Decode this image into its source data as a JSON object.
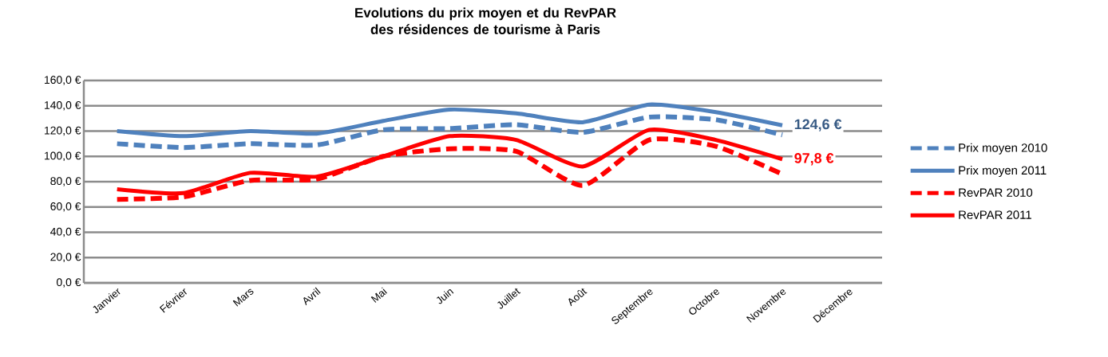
{
  "chart_data": {
    "type": "line",
    "title": "Evolutions du prix moyen et du RevPAR des résidences de tourisme à Paris",
    "categories": [
      "Janvier",
      "Février",
      "Mars",
      "Avril",
      "Mai",
      "Juin",
      "Juillet",
      "Août",
      "Septembre",
      "Octobre",
      "Novembre",
      "Décembre"
    ],
    "series": [
      {
        "name": "Prix moyen 2010",
        "color": "#4f81bd",
        "line_style": "dashed",
        "values": [
          110,
          107,
          110,
          109,
          121,
          122,
          125,
          119,
          131,
          129,
          117,
          null
        ]
      },
      {
        "name": "Prix moyen 2011",
        "color": "#4f81bd",
        "line_style": "solid",
        "values": [
          120,
          116,
          120,
          118,
          128,
          137,
          134,
          127,
          141,
          135,
          124.6,
          null
        ]
      },
      {
        "name": "RevPAR 2010",
        "color": "#ff0000",
        "line_style": "dashed",
        "values": [
          66,
          68,
          81,
          82,
          100,
          106,
          104,
          77,
          113,
          108,
          86,
          null
        ]
      },
      {
        "name": "RevPAR 2011",
        "color": "#ff0000",
        "line_style": "solid",
        "values": [
          74,
          71,
          87,
          84,
          100,
          116,
          113,
          92,
          121,
          113,
          97.8,
          null
        ]
      }
    ],
    "ylim": [
      0,
      160
    ],
    "yticks": [
      {
        "value": 0,
        "label": "0,0 €"
      },
      {
        "value": 20,
        "label": "20,0 €"
      },
      {
        "value": 40,
        "label": "40,0 €"
      },
      {
        "value": 60,
        "label": "60,0 €"
      },
      {
        "value": 80,
        "label": "80,0 €"
      },
      {
        "value": 100,
        "label": "100,0 €"
      },
      {
        "value": 120,
        "label": "120,0 €"
      },
      {
        "value": 140,
        "label": "140,0 €"
      },
      {
        "value": 160,
        "label": "160,0 €"
      }
    ],
    "grid": "y",
    "legend": "right",
    "annotations": [
      {
        "text": "124,6 €",
        "x": "Novembre",
        "y": 124.6
      },
      {
        "text": "97,8 €",
        "x": "Novembre",
        "y": 97.8
      }
    ]
  }
}
